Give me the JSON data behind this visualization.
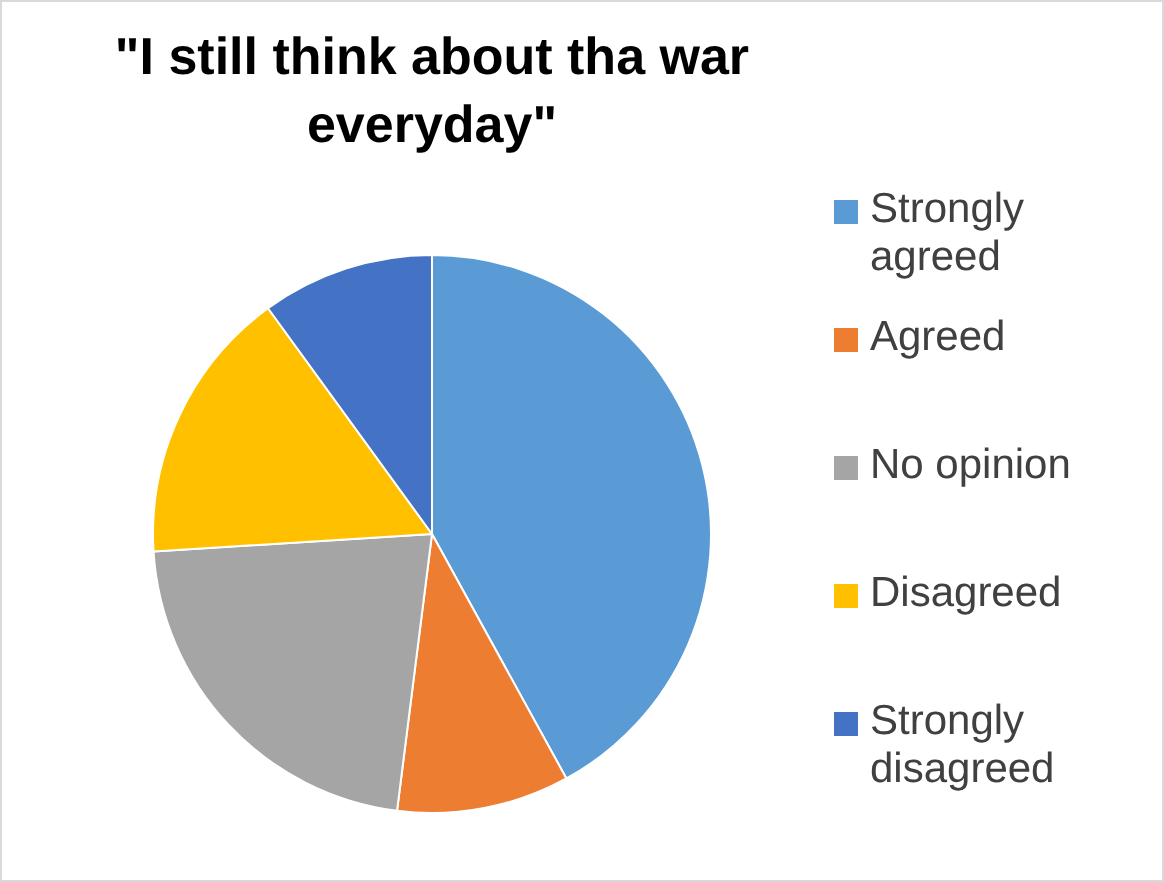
{
  "chart_data": {
    "type": "pie",
    "title": "\"I still think about tha war everyday\"",
    "categories": [
      "Strongly agreed",
      "Agreed",
      "No opinion",
      "Disagreed",
      "Strongly disagreed"
    ],
    "values": [
      42,
      10,
      22,
      16,
      10
    ],
    "colors": [
      "#5b9bd5",
      "#ed7d31",
      "#a5a5a5",
      "#ffc000",
      "#4472c4"
    ],
    "legend": "right"
  }
}
